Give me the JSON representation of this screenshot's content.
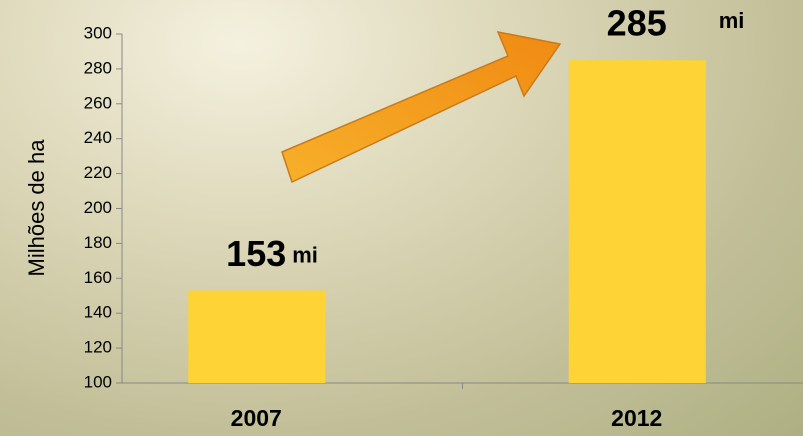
{
  "chart_data": {
    "type": "bar",
    "y_label": "Milhões de ha",
    "categories": [
      "2007",
      "2012"
    ],
    "values": [
      153,
      285
    ],
    "value_units": [
      "mi",
      "mi"
    ],
    "color": "#fdd335",
    "ylim": [
      100,
      300
    ],
    "yticks": [
      100,
      120,
      140,
      160,
      180,
      200,
      220,
      240,
      260,
      280,
      300
    ]
  }
}
